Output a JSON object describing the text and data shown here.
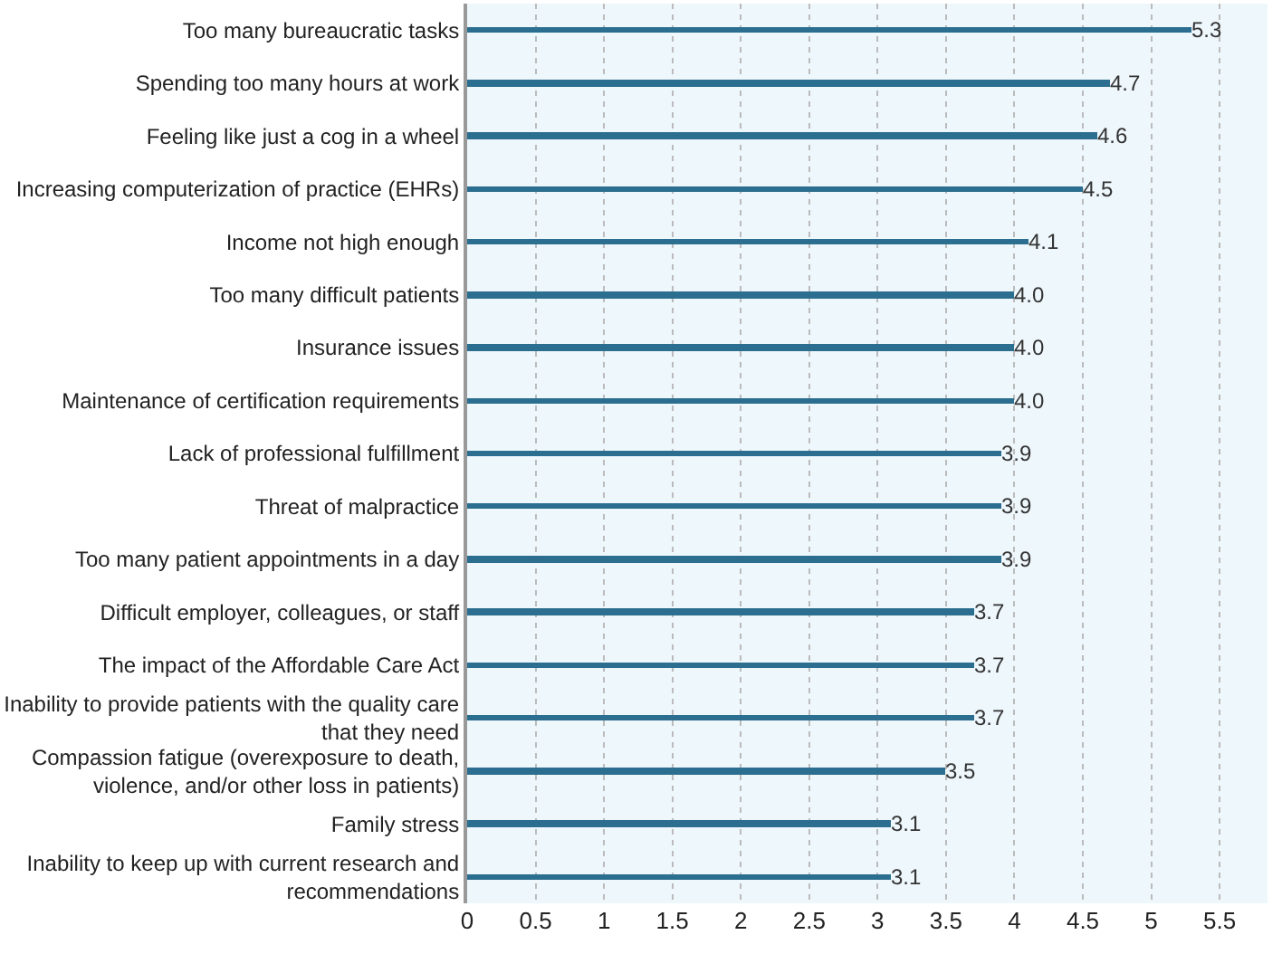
{
  "chart_data": {
    "type": "bar",
    "orientation": "horizontal",
    "categories": [
      "Too many bureaucratic tasks",
      "Spending too many hours at work",
      "Feeling like just a cog in a wheel",
      "Increasing computerization of practice (EHRs)",
      "Income not high enough",
      "Too many difficult patients",
      "Insurance issues",
      "Maintenance of certification requirements",
      "Lack of professional fulfillment",
      "Threat of malpractice",
      "Too many patient appointments in a day",
      "Difficult employer, colleagues, or staff",
      "The impact of the Affordable Care Act",
      "Inability to provide patients with the quality care that they need",
      "Compassion fatigue (overexposure to death, violence, and/or other loss in patients)",
      "Family stress",
      "Inability to keep up with current research and recommendations"
    ],
    "values": [
      5.3,
      4.7,
      4.6,
      4.5,
      4.1,
      4.0,
      4.0,
      4.0,
      3.9,
      3.9,
      3.9,
      3.7,
      3.7,
      3.7,
      3.5,
      3.1,
      3.1
    ],
    "value_labels": [
      "5.3",
      "4.7",
      "4.6",
      "4.5",
      "4.1",
      "4.0",
      "4.0",
      "4.0",
      "3.9",
      "3.9",
      "3.9",
      "3.7",
      "3.7",
      "3.7",
      "3.5",
      "3.1",
      "3.1"
    ],
    "color": "#2b6e8f",
    "xlim": [
      0,
      5.85
    ],
    "xticks": [
      0,
      0.5,
      1,
      1.5,
      2,
      2.5,
      3,
      3.5,
      4,
      4.5,
      5,
      5.5
    ],
    "grid": "x",
    "legend": false
  }
}
